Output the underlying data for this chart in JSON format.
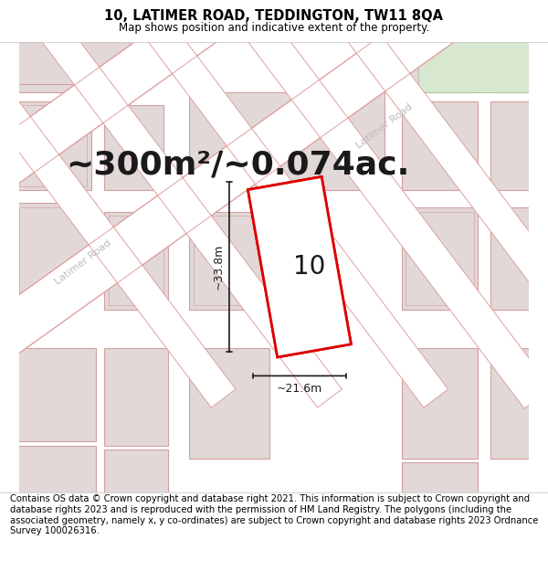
{
  "title": "10, LATIMER ROAD, TEDDINGTON, TW11 8QA",
  "subtitle": "Map shows position and indicative extent of the property.",
  "area_label": "~300m²/~0.074ac.",
  "number_label": "10",
  "dim_width_label": "~21.6m",
  "dim_height_label": "~33.8m",
  "footer": "Contains OS data © Crown copyright and database right 2021. This information is subject to Crown copyright and database rights 2023 and is reproduced with the permission of HM Land Registry. The polygons (including the associated geometry, namely x, y co-ordinates) are subject to Crown copyright and database rights 2023 Ordnance Survey 100026316.",
  "bg_color": "#f2eded",
  "road_color": "#ffffff",
  "building_fill": "#e2d8d8",
  "building_edge": "#d4a0a0",
  "road_edge": "#e0a0a0",
  "highlight_fill": "#ffffff",
  "red_color": "#dd0000",
  "dim_color": "#1a1a1a",
  "title_fontsize": 10.5,
  "subtitle_fontsize": 8.5,
  "area_fontsize": 26,
  "number_fontsize": 20,
  "dim_fontsize": 9,
  "footer_fontsize": 7.2,
  "road_name_color": "#bbbbbb",
  "road_name_fontsize": 8
}
